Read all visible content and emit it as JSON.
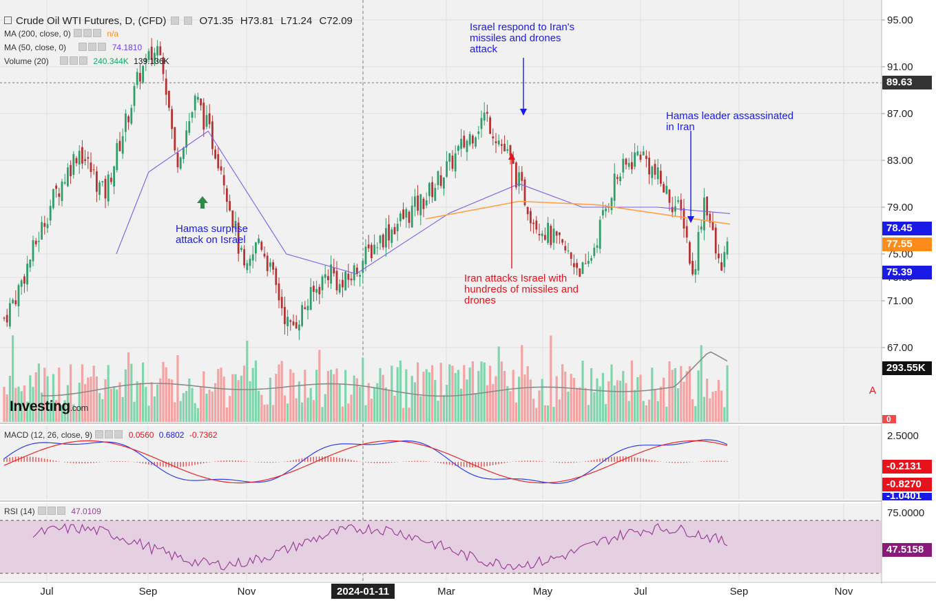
{
  "header": {
    "symbol": "Crude Oil WTI Futures, D, (CFD)",
    "open": "O71.35",
    "high": "H73.81",
    "low": "L71.24",
    "close": "C72.09"
  },
  "indicators": {
    "ma200": {
      "label": "MA (200, close, 0)",
      "value": "n/a",
      "color": "#ff8c1a"
    },
    "ma50": {
      "label": "MA (50, close, 0)",
      "value": "74.1810",
      "color": "#7b5cf0"
    },
    "volume": {
      "label": "Volume (20)",
      "value1": "240.344K",
      "value2": "139.136K"
    },
    "macd": {
      "label": "MACD (12, 26, close, 9)",
      "v1": "0.0560",
      "v2": "0.6802",
      "v3": "-0.7362"
    },
    "rsi": {
      "label": "RSI (14)",
      "value": "47.0109"
    }
  },
  "price_axis": {
    "ticks": [
      "95.00",
      "91.00",
      "87.00",
      "83.00",
      "79.00",
      "75.00",
      "73.00",
      "71.00",
      "67.00"
    ],
    "badges": {
      "level": "89.63",
      "ma50": "78.45",
      "ma200": "77.55",
      "last": "75.39",
      "volume": "293.55K",
      "zero": "0"
    }
  },
  "macd_axis": {
    "top": "2.5000",
    "badges": [
      "-0.2131",
      "-0.8270",
      "-1.0401"
    ]
  },
  "rsi_axis": {
    "top": "75.0000",
    "badge": "47.5158"
  },
  "time_axis": {
    "labels": [
      "Jul",
      "Sep",
      "Nov",
      "2024-01-11",
      "Mar",
      "May",
      "Jul",
      "Sep",
      "Nov"
    ]
  },
  "annotations": {
    "israel_respond": "Israel respond to Iran's\nmissiles and drones\nattack",
    "hamas_leader": "Hamas leader assassinated\nin Iran",
    "hamas_attack": "Hamas surprise\nattack on Israel",
    "iran_attacks": "Iran attacks Israel with\nhundreds of missiles and\ndrones",
    "alert_text": "A"
  },
  "branding": {
    "logo": "Investing",
    "logo_suffix": ".com"
  },
  "colors": {
    "up": "#2f9e6a",
    "down": "#b63232",
    "vol_up": "#7fd6ac",
    "vol_down": "#f4a3a3",
    "ma50": "#7b5cf0",
    "ma200": "#ffa040",
    "vol_ma": "#8a8a8a",
    "macd": "#2a3ef0",
    "signal": "#ee2222",
    "rsi": "#9b3f9b",
    "rsi_band": "#e4d0e1"
  },
  "chart_data": {
    "type": "candlestick",
    "title": "Crude Oil WTI Futures, D, (CFD)",
    "ylim": [
      65.5,
      96.0
    ],
    "y_ticks": [
      95,
      91,
      87,
      83,
      79,
      75,
      73,
      71,
      67
    ],
    "ohlc_series": {
      "period_labels": [
        "Jul",
        "Sep",
        "Nov",
        "2024-01-11",
        "Mar",
        "May",
        "Jul",
        "Sep"
      ],
      "close_path": [
        {
          "x": "2023-06-27",
          "y": 69.5
        },
        {
          "x": "2023-07-05",
          "y": 71.8
        },
        {
          "x": "2023-07-25",
          "y": 79.5
        },
        {
          "x": "2023-08-10",
          "y": 84.0
        },
        {
          "x": "2023-08-25",
          "y": 80.0
        },
        {
          "x": "2023-09-15",
          "y": 90.5
        },
        {
          "x": "2023-09-27",
          "y": 93.0
        },
        {
          "x": "2023-10-06",
          "y": 82.8
        },
        {
          "x": "2023-10-18",
          "y": 88.3
        },
        {
          "x": "2023-11-02",
          "y": 82.5
        },
        {
          "x": "2023-11-16",
          "y": 72.9
        },
        {
          "x": "2023-11-24",
          "y": 76.5
        },
        {
          "x": "2023-12-12",
          "y": 68.5
        },
        {
          "x": "2024-01-05",
          "y": 73.8
        },
        {
          "x": "2024-01-11",
          "y": 72.0
        },
        {
          "x": "2024-02-01",
          "y": 76.0
        },
        {
          "x": "2024-03-01",
          "y": 79.8
        },
        {
          "x": "2024-04-05",
          "y": 86.9
        },
        {
          "x": "2024-04-19",
          "y": 83.1
        },
        {
          "x": "2024-05-03",
          "y": 78.1
        },
        {
          "x": "2024-06-03",
          "y": 73.3
        },
        {
          "x": "2024-06-20",
          "y": 81.3
        },
        {
          "x": "2024-07-05",
          "y": 83.8
        },
        {
          "x": "2024-07-31",
          "y": 77.9
        },
        {
          "x": "2024-08-05",
          "y": 72.9
        },
        {
          "x": "2024-08-12",
          "y": 80.1
        },
        {
          "x": "2024-08-20",
          "y": 74.0
        },
        {
          "x": "2024-08-27",
          "y": 75.4
        }
      ]
    },
    "ma50_path": [
      {
        "x": "2023-09-01",
        "y": 75.0
      },
      {
        "x": "2023-09-20",
        "y": 82.0
      },
      {
        "x": "2023-10-25",
        "y": 85.5
      },
      {
        "x": "2023-12-10",
        "y": 75.0
      },
      {
        "x": "2024-01-20",
        "y": 73.3
      },
      {
        "x": "2024-03-15",
        "y": 78.5
      },
      {
        "x": "2024-04-25",
        "y": 81.0
      },
      {
        "x": "2024-06-01",
        "y": 79.0
      },
      {
        "x": "2024-07-15",
        "y": 79.0
      },
      {
        "x": "2024-08-27",
        "y": 78.45
      }
    ],
    "ma200_path": [
      {
        "x": "2024-03-01",
        "y": 78.0
      },
      {
        "x": "2024-04-25",
        "y": 79.5
      },
      {
        "x": "2024-06-10",
        "y": 79.2
      },
      {
        "x": "2024-08-27",
        "y": 77.55
      }
    ],
    "price_level": 89.63,
    "volume_ma_last": "293.55K",
    "macd_axis_ticks": [
      2.5
    ],
    "macd_last": {
      "macd": -1.0401,
      "signal": -0.827,
      "histogram": -0.2131
    },
    "rsi_axis_ticks": [
      75
    ],
    "rsi_last": 47.5158,
    "events": [
      {
        "x": "2023-10-07",
        "label": "Hamas surprise attack on Israel"
      },
      {
        "x": "2024-04-13",
        "label": "Iran attacks Israel with hundreds of missiles and drones"
      },
      {
        "x": "2024-04-19",
        "label": "Israel respond to Iran's missiles and drones attack"
      },
      {
        "x": "2024-07-31",
        "label": "Hamas leader assassinated in Iran"
      }
    ]
  }
}
